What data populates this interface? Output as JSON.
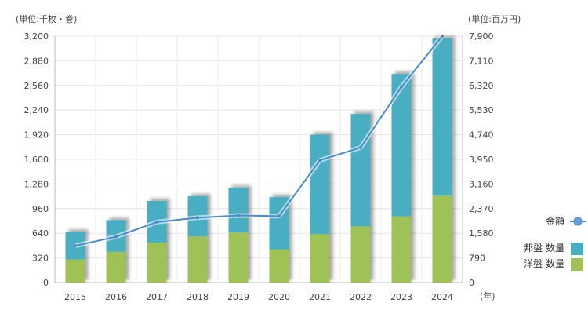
{
  "chart_data": {
    "type": "bar",
    "stacked": true,
    "categories": [
      "2015",
      "2016",
      "2017",
      "2018",
      "2019",
      "2020",
      "2021",
      "2022",
      "2023",
      "2024"
    ],
    "x_suffix_label": "(年)",
    "left_axis": {
      "unit_label": "(単位:千枚・巻)",
      "ticks": [
        "0",
        "320",
        "640",
        "960",
        "1,280",
        "1,600",
        "1,920",
        "2,240",
        "2,560",
        "2,880",
        "3,200"
      ],
      "range": [
        0,
        3200
      ]
    },
    "right_axis": {
      "unit_label": "(単位:百万円)",
      "ticks": [
        "0",
        "790",
        "1,580",
        "2,370",
        "3,160",
        "3,950",
        "4,740",
        "5,530",
        "6,320",
        "7,110",
        "7,900"
      ],
      "range": [
        0,
        7900
      ]
    },
    "series": [
      {
        "name": "洋盤 数量",
        "type": "bar",
        "color": "#9ec255",
        "values": [
          300,
          400,
          520,
          600,
          650,
          430,
          630,
          730,
          860,
          1130
        ]
      },
      {
        "name": "邦盤 数量",
        "type": "bar",
        "color": "#4aaec1",
        "values": [
          360,
          410,
          540,
          520,
          580,
          680,
          1290,
          1460,
          1850,
          2040
        ]
      },
      {
        "name": "金額",
        "type": "line",
        "axis": "right",
        "color": "#4a8cc9",
        "values": [
          1180,
          1470,
          1940,
          2080,
          2150,
          2130,
          3920,
          4330,
          6270,
          7900
        ]
      }
    ],
    "grid": true,
    "legend_position": "right"
  }
}
